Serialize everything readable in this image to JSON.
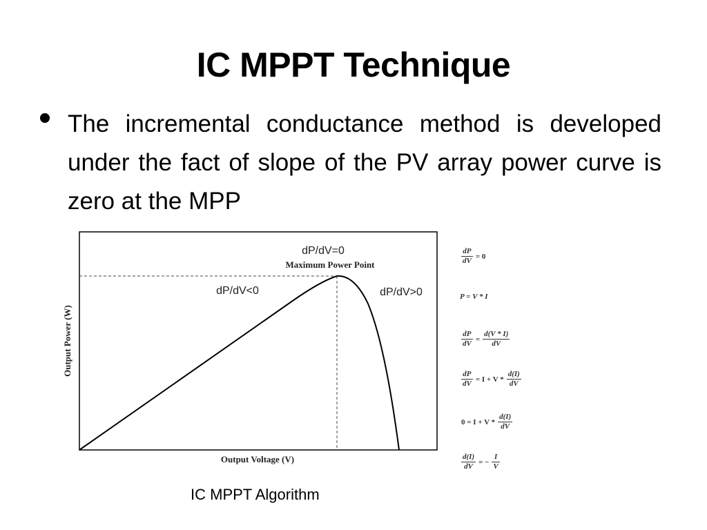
{
  "slide": {
    "title": "IC MPPT Technique",
    "bullet_text": "The incremental conductance method is developed under the fact of slope of the PV array power curve is zero at the MPP",
    "caption": "IC MPPT Algorithm"
  },
  "chart_data": {
    "type": "line",
    "title": "",
    "xlabel": "Output Voltage (V)",
    "ylabel": "Output Power (W)",
    "grid": false,
    "annotations": {
      "top": "dP/dV=0",
      "mpp": "Maximum Power Point",
      "left": "dP/dV<0",
      "right": "dP/dV>0"
    },
    "series": [
      {
        "values": []
      }
    ]
  },
  "equations": {
    "eq1": {
      "num": "dP",
      "den": "dV",
      "rhs": "= 0"
    },
    "eq2": {
      "text": "P = V * I"
    },
    "eq3": {
      "num": "dP",
      "den": "dV",
      "eq": "=",
      "num2": "d(V * I)",
      "den2": "dV"
    },
    "eq4": {
      "num": "dP",
      "den": "dV",
      "eq": "= I + V *",
      "num2": "d(I)",
      "den2": "dV"
    },
    "eq5": {
      "lhs": "0 = I + V *",
      "num2": "d(I)",
      "den2": "dV"
    },
    "eq6": {
      "num": "d(I)",
      "den": "dV",
      "eq": "= −",
      "num2": "I",
      "den2": "V"
    }
  }
}
